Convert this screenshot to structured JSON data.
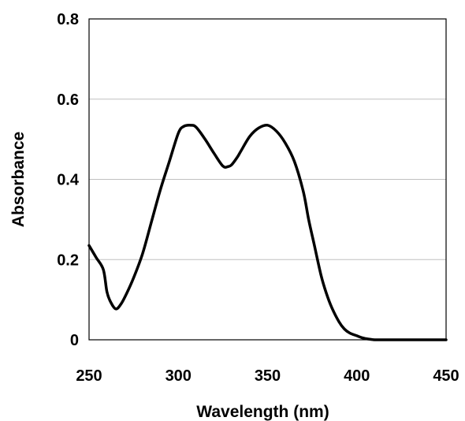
{
  "chart_data": {
    "type": "line",
    "title": "",
    "xlabel": "Wavelength (nm)",
    "ylabel": "Absorbance",
    "xlim": [
      250,
      450
    ],
    "ylim": [
      0,
      0.8
    ],
    "x_ticks": [
      250,
      300,
      350,
      400,
      450
    ],
    "x_tick_labels": [
      "250",
      "300",
      "350",
      "400",
      "450"
    ],
    "y_ticks": [
      0,
      0.2,
      0.4,
      0.6,
      0.8
    ],
    "y_tick_labels": [
      "0",
      "0.2",
      "0.4",
      "0.6",
      "0.8"
    ],
    "grid": "horizontal",
    "legend": "none",
    "colors": {
      "line": "#000000",
      "grid": "#c0c0c0",
      "frame": "#000000"
    },
    "series": [
      {
        "x": [
          250,
          254,
          258,
          260,
          262,
          265,
          268,
          271,
          275,
          280,
          285,
          290,
          295,
          300,
          303,
          307,
          310,
          315,
          320,
          325,
          328,
          330,
          333,
          335,
          340,
          345,
          350,
          355,
          360,
          365,
          370,
          373,
          376,
          380,
          383,
          386,
          390,
          393,
          396,
          400,
          403,
          405,
          408,
          410,
          415,
          420,
          430,
          440,
          450
        ],
        "y": [
          0.235,
          0.205,
          0.175,
          0.12,
          0.095,
          0.077,
          0.09,
          0.115,
          0.155,
          0.215,
          0.295,
          0.375,
          0.445,
          0.515,
          0.532,
          0.535,
          0.53,
          0.5,
          0.465,
          0.433,
          0.432,
          0.437,
          0.455,
          0.47,
          0.507,
          0.528,
          0.535,
          0.52,
          0.49,
          0.445,
          0.37,
          0.3,
          0.24,
          0.16,
          0.115,
          0.08,
          0.045,
          0.027,
          0.017,
          0.01,
          0.005,
          0.003,
          0.001,
          0.0,
          0.0,
          0.0,
          0.0,
          0.0,
          0.0
        ]
      }
    ]
  }
}
